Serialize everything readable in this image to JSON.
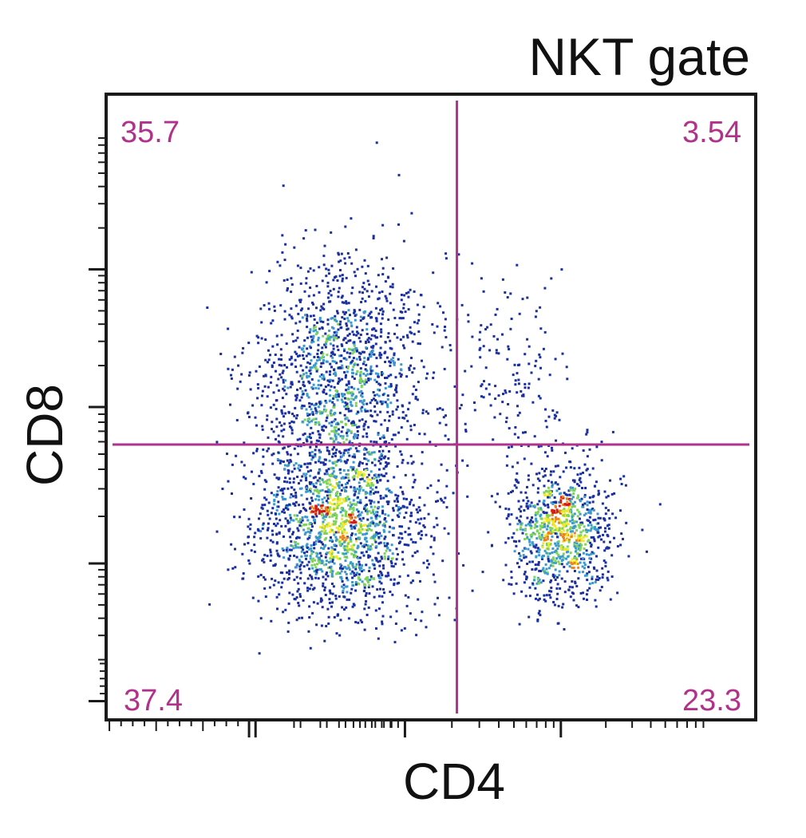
{
  "chart_data": {
    "type": "scatter",
    "title": "NKT gate",
    "xlabel": "CD4",
    "ylabel": "CD8",
    "xlim": [
      0,
      1
    ],
    "ylim": [
      0,
      1
    ],
    "x_scale": "log",
    "y_scale": "log",
    "x_tick_labels": [],
    "y_tick_labels": [],
    "grid": false,
    "density_colormap": [
      "#1a2fa0",
      "#3a9ad0",
      "#7fd35a",
      "#f2e82a",
      "#e9851f",
      "#d21a1a"
    ],
    "quadrant_gate": {
      "x_threshold": 0.54,
      "y_threshold": 0.44,
      "color": "#b0328a"
    },
    "quadrants": [
      {
        "position": "top-left",
        "percent": "35.7"
      },
      {
        "position": "top-right",
        "percent": "3.54"
      },
      {
        "position": "bottom-left",
        "percent": "37.4"
      },
      {
        "position": "bottom-right",
        "percent": "23.3"
      }
    ],
    "populations": [
      {
        "quadrant": "top-left",
        "percent": 35.7,
        "center": [
          0.36,
          0.54
        ],
        "spread": [
          0.065,
          0.1
        ]
      },
      {
        "quadrant": "bottom-left",
        "percent": 37.4,
        "center": [
          0.36,
          0.305
        ],
        "spread": [
          0.065,
          0.07
        ]
      },
      {
        "quadrant": "bottom-right",
        "percent": 23.3,
        "center": [
          0.7,
          0.3
        ],
        "spread": [
          0.04,
          0.055
        ]
      },
      {
        "quadrant": "top-right",
        "percent": 3.54,
        "center": [
          0.63,
          0.54
        ],
        "spread": [
          0.045,
          0.08
        ]
      }
    ]
  }
}
